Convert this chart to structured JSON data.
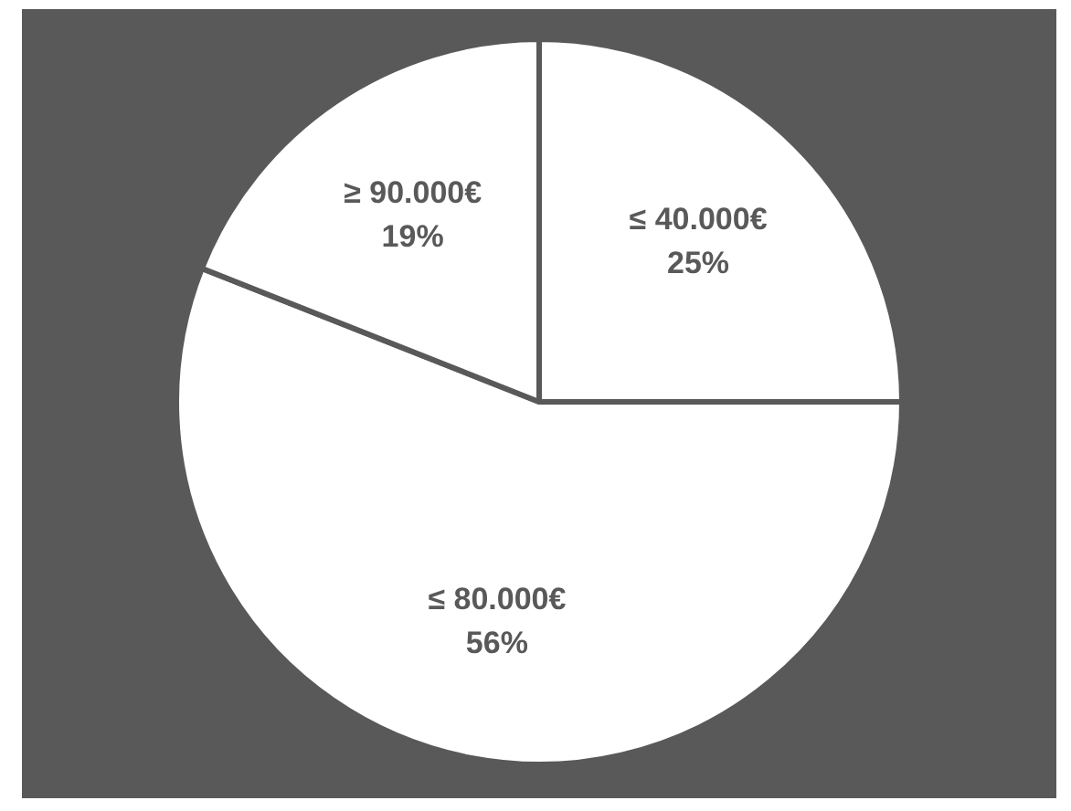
{
  "chart_data": {
    "type": "pie",
    "categories": [
      "≤ 40.000€",
      "≤ 80.000€",
      "≥ 90.000€"
    ],
    "values": [
      25,
      56,
      19
    ],
    "colors": [
      "#ffffff",
      "#ffffff",
      "#ffffff"
    ],
    "value_labels": [
      "25%",
      "56%",
      "19%"
    ],
    "legend": false
  }
}
